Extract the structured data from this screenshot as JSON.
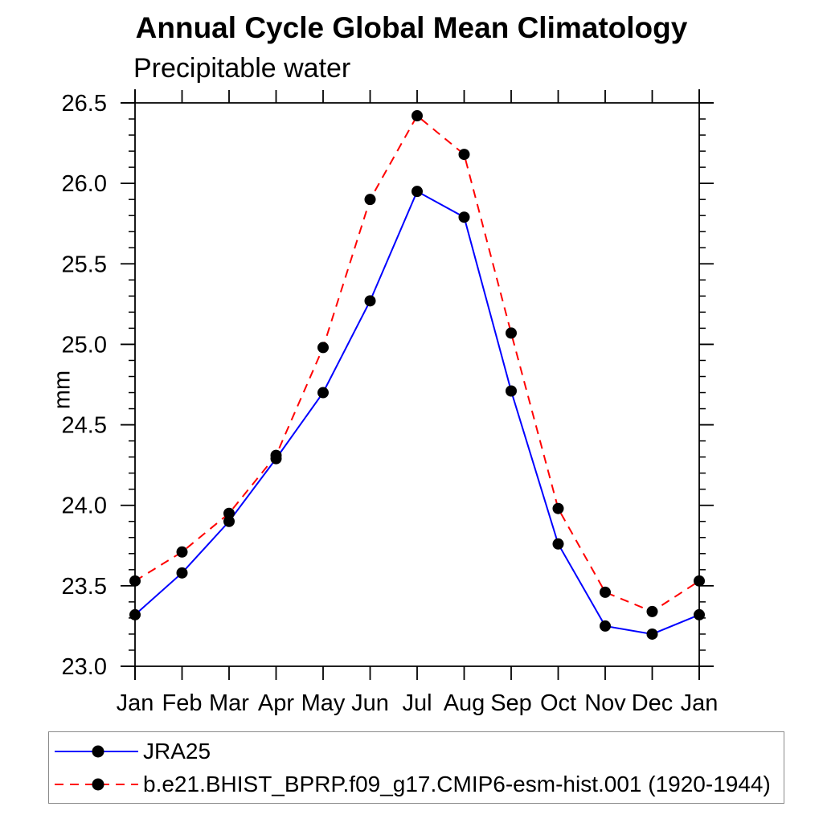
{
  "page": {
    "background": "#ffffff",
    "text_color": "#000000"
  },
  "chart_data": {
    "type": "line",
    "title": "Annual Cycle Global Mean Climatology",
    "subtitle": "Precipitable water",
    "ylabel": "mm",
    "categories": [
      "Jan",
      "Feb",
      "Mar",
      "Apr",
      "May",
      "Jun",
      "Jul",
      "Aug",
      "Sep",
      "Oct",
      "Nov",
      "Dec",
      "Jan"
    ],
    "ylim": [
      23.0,
      26.5
    ],
    "ytick_labels": [
      "23.0",
      "23.5",
      "24.0",
      "24.5",
      "25.0",
      "25.5",
      "26.0",
      "26.5"
    ],
    "ytick_interval_major": 0.5,
    "ytick_interval_minor": 0.1,
    "grid": false,
    "legend_position": "bottom",
    "series": [
      {
        "name": "JRA25",
        "color": "#0000ff",
        "line_style": "solid",
        "marker": "filled-circle",
        "marker_color": "#000000",
        "values": [
          23.32,
          23.58,
          23.9,
          24.29,
          24.7,
          25.27,
          25.95,
          25.79,
          24.71,
          23.76,
          23.25,
          23.2,
          23.32
        ]
      },
      {
        "name": "b.e21.BHIST_BPRP.f09_g17.CMIP6-esm-hist.001 (1920-1944)",
        "color": "#ff0000",
        "line_style": "dashed",
        "marker": "filled-circle",
        "marker_color": "#000000",
        "values": [
          23.53,
          23.71,
          23.95,
          24.31,
          24.98,
          25.9,
          26.42,
          26.18,
          25.07,
          23.98,
          23.46,
          23.34,
          23.53
        ]
      }
    ]
  }
}
